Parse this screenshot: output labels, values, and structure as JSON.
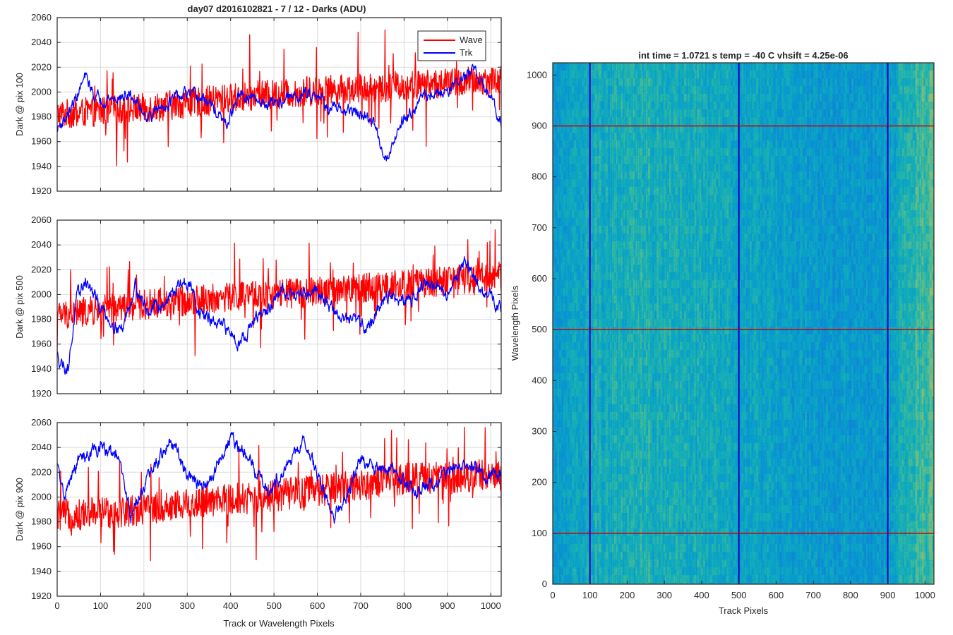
{
  "figure": {
    "title": "day07 d2016102821 - 7 / 12 - Darks (ADU)"
  },
  "chart_data": [
    {
      "type": "line",
      "ylabel": "Dark @ pix 100",
      "xlabel": "",
      "xlim": [
        0,
        1024
      ],
      "ylim": [
        1920,
        2060
      ],
      "xticks": [
        0,
        100,
        200,
        300,
        400,
        500,
        600,
        700,
        800,
        900,
        1000
      ],
      "yticks": [
        1920,
        1940,
        1960,
        1980,
        2000,
        2020,
        2040,
        2060
      ],
      "show_xticklabels": false,
      "grid": true,
      "legend": {
        "position": "top-right",
        "entries": [
          "Wave",
          "Trk"
        ]
      },
      "series": [
        {
          "name": "Wave",
          "color": "#ff0000",
          "noise": 12,
          "spikes": 28,
          "trend": [
            [
              0,
              1982
            ],
            [
              200,
              1987
            ],
            [
              400,
              1995
            ],
            [
              600,
              2001
            ],
            [
              800,
              2005
            ],
            [
              1024,
              2010
            ]
          ]
        },
        {
          "name": "Trk",
          "color": "#0000ff",
          "noise": 3.5,
          "spikes": 0,
          "trend": [
            [
              0,
              1970
            ],
            [
              30,
              1985
            ],
            [
              65,
              2012
            ],
            [
              90,
              1995
            ],
            [
              140,
              1995
            ],
            [
              170,
              1997
            ],
            [
              210,
              1980
            ],
            [
              260,
              1993
            ],
            [
              300,
              1998
            ],
            [
              350,
              1992
            ],
            [
              390,
              1972
            ],
            [
              420,
              1998
            ],
            [
              460,
              1992
            ],
            [
              510,
              1992
            ],
            [
              560,
              1998
            ],
            [
              600,
              2000
            ],
            [
              630,
              1985
            ],
            [
              680,
              1985
            ],
            [
              730,
              1975
            ],
            [
              760,
              1945
            ],
            [
              790,
              1975
            ],
            [
              840,
              1995
            ],
            [
              890,
              2000
            ],
            [
              940,
              2012
            ],
            [
              960,
              2018
            ],
            [
              990,
              2000
            ],
            [
              1024,
              1978
            ]
          ]
        }
      ]
    },
    {
      "type": "line",
      "ylabel": "Dark @ pix 500",
      "xlabel": "",
      "xlim": [
        0,
        1024
      ],
      "ylim": [
        1920,
        2060
      ],
      "xticks": [
        0,
        100,
        200,
        300,
        400,
        500,
        600,
        700,
        800,
        900,
        1000
      ],
      "yticks": [
        1920,
        1940,
        1960,
        1980,
        2000,
        2020,
        2040,
        2060
      ],
      "show_xticklabels": false,
      "grid": true,
      "series": [
        {
          "name": "Wave",
          "color": "#ff0000",
          "noise": 12,
          "spikes": 24,
          "trend": [
            [
              0,
              1983
            ],
            [
              200,
              1992
            ],
            [
              400,
              1998
            ],
            [
              600,
              2002
            ],
            [
              800,
              2008
            ],
            [
              1024,
              2015
            ]
          ]
        },
        {
          "name": "Trk",
          "color": "#0000ff",
          "noise": 4,
          "spikes": 0,
          "trend": [
            [
              0,
              1950
            ],
            [
              25,
              1940
            ],
            [
              45,
              1995
            ],
            [
              65,
              2012
            ],
            [
              90,
              1995
            ],
            [
              120,
              1980
            ],
            [
              150,
              1972
            ],
            [
              180,
              2008
            ],
            [
              210,
              1985
            ],
            [
              250,
              1995
            ],
            [
              290,
              2010
            ],
            [
              310,
              2005
            ],
            [
              330,
              1985
            ],
            [
              370,
              1975
            ],
            [
              400,
              1970
            ],
            [
              420,
              1962
            ],
            [
              460,
              1980
            ],
            [
              500,
              1992
            ],
            [
              520,
              2005
            ],
            [
              560,
              2000
            ],
            [
              600,
              2005
            ],
            [
              640,
              1985
            ],
            [
              680,
              1978
            ],
            [
              720,
              1975
            ],
            [
              760,
              2000
            ],
            [
              800,
              1992
            ],
            [
              850,
              2010
            ],
            [
              900,
              2000
            ],
            [
              940,
              2028
            ],
            [
              980,
              2002
            ],
            [
              1024,
              1990
            ]
          ]
        }
      ]
    },
    {
      "type": "line",
      "ylabel": "Dark @ pix 900",
      "xlabel": "Track or Wavelength Pixels",
      "xlim": [
        0,
        1024
      ],
      "ylim": [
        1920,
        2060
      ],
      "xticks": [
        0,
        100,
        200,
        300,
        400,
        500,
        600,
        700,
        800,
        900,
        1000
      ],
      "yticks": [
        1920,
        1940,
        1960,
        1980,
        2000,
        2020,
        2040,
        2060
      ],
      "show_xticklabels": true,
      "grid": true,
      "series": [
        {
          "name": "Wave",
          "color": "#ff0000",
          "noise": 13,
          "spikes": 26,
          "trend": [
            [
              0,
              1985
            ],
            [
              200,
              1990
            ],
            [
              400,
              1998
            ],
            [
              600,
              2005
            ],
            [
              800,
              2015
            ],
            [
              1024,
              2018
            ]
          ]
        },
        {
          "name": "Trk",
          "color": "#0000ff",
          "noise": 4,
          "spikes": 0,
          "trend": [
            [
              0,
              2025
            ],
            [
              15,
              2000
            ],
            [
              50,
              2030
            ],
            [
              100,
              2040
            ],
            [
              140,
              2032
            ],
            [
              170,
              1985
            ],
            [
              200,
              2010
            ],
            [
              260,
              2045
            ],
            [
              300,
              2020
            ],
            [
              340,
              2005
            ],
            [
              400,
              2048
            ],
            [
              440,
              2030
            ],
            [
              490,
              2005
            ],
            [
              520,
              2020
            ],
            [
              570,
              2045
            ],
            [
              610,
              2010
            ],
            [
              640,
              1985
            ],
            [
              680,
              2010
            ],
            [
              700,
              2030
            ],
            [
              740,
              2025
            ],
            [
              780,
              2020
            ],
            [
              820,
              2005
            ],
            [
              860,
              2010
            ],
            [
              900,
              2020
            ],
            [
              950,
              2030
            ],
            [
              990,
              2015
            ],
            [
              1024,
              2020
            ]
          ]
        }
      ]
    },
    {
      "type": "heatmap",
      "title": "int time = 1.0721 s   temp = -40 C   vhsift = 4.25e-06",
      "xlabel": "Track Pixels",
      "ylabel": "Wavelength Pixels",
      "xlim": [
        0,
        1024
      ],
      "ylim": [
        0,
        1024
      ],
      "xticks": [
        0,
        100,
        200,
        300,
        400,
        500,
        600,
        700,
        800,
        900,
        1000
      ],
      "yticks": [
        0,
        100,
        200,
        300,
        400,
        500,
        600,
        700,
        800,
        900,
        1000
      ],
      "colormap": "parula",
      "vertical_markers": {
        "color": "#0000cc",
        "x": [
          100,
          500,
          900
        ]
      },
      "horizontal_markers": {
        "color": "#cc0000",
        "y": [
          100,
          500,
          900
        ]
      }
    }
  ]
}
